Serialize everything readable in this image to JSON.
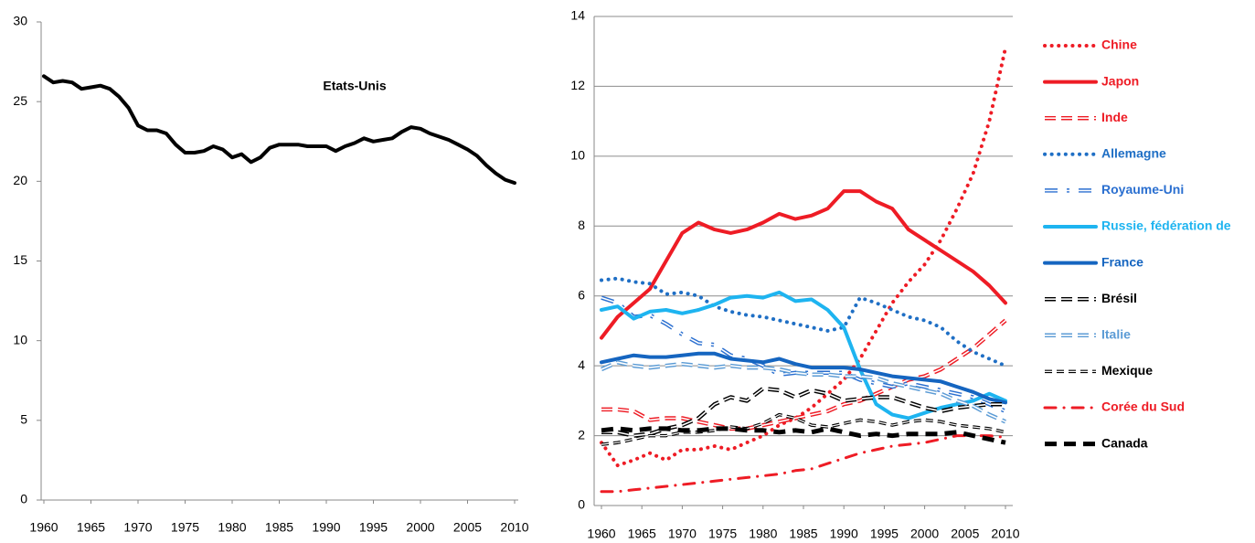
{
  "chart_data": [
    {
      "type": "line",
      "x": [
        1960,
        1961,
        1962,
        1963,
        1964,
        1965,
        1966,
        1967,
        1968,
        1969,
        1970,
        1971,
        1972,
        1973,
        1974,
        1975,
        1976,
        1977,
        1978,
        1979,
        1980,
        1981,
        1982,
        1983,
        1984,
        1985,
        1986,
        1987,
        1988,
        1989,
        1990,
        1991,
        1992,
        1993,
        1994,
        1995,
        1996,
        1997,
        1998,
        1999,
        2000,
        2001,
        2002,
        2003,
        2004,
        2005,
        2006,
        2007,
        2008,
        2009,
        2010
      ],
      "series": [
        {
          "name": "Etats-Unis",
          "color": "#000000",
          "dash": "solid",
          "values": [
            26.6,
            26.2,
            26.3,
            26.2,
            25.8,
            25.9,
            26.0,
            25.8,
            25.3,
            24.6,
            23.5,
            23.2,
            23.2,
            23.0,
            22.3,
            21.8,
            21.8,
            21.9,
            22.2,
            22.0,
            21.5,
            21.7,
            21.2,
            21.5,
            22.1,
            22.3,
            22.3,
            22.3,
            22.2,
            22.2,
            22.2,
            21.9,
            22.2,
            22.4,
            22.7,
            22.5,
            22.6,
            22.7,
            23.1,
            23.4,
            23.3,
            23.0,
            22.8,
            22.6,
            22.3,
            22.0,
            21.6,
            21.0,
            20.5,
            20.1,
            19.9
          ]
        }
      ],
      "xlim": [
        1960,
        2010
      ],
      "xticks": [
        1960,
        1965,
        1970,
        1975,
        1980,
        1985,
        1990,
        1995,
        2000,
        2005,
        2010
      ],
      "ylim": [
        0,
        30
      ],
      "yticks": [
        0,
        5,
        10,
        15,
        20,
        25,
        30
      ],
      "grid": false,
      "legend": "inline"
    },
    {
      "type": "line",
      "x": [
        1960,
        1962,
        1964,
        1966,
        1968,
        1970,
        1972,
        1974,
        1976,
        1978,
        1980,
        1982,
        1984,
        1986,
        1988,
        1990,
        1992,
        1994,
        1996,
        1998,
        2000,
        2002,
        2004,
        2006,
        2008,
        2010
      ],
      "series": [
        {
          "name": "Chine",
          "color": "#ee1c25",
          "dash": "dotted",
          "values": [
            1.8,
            1.15,
            1.3,
            1.5,
            1.3,
            1.6,
            1.6,
            1.7,
            1.6,
            1.8,
            2.0,
            2.3,
            2.5,
            2.8,
            3.2,
            3.6,
            4.2,
            5.0,
            5.8,
            6.4,
            6.9,
            7.6,
            8.5,
            9.5,
            11.0,
            13.1
          ]
        },
        {
          "name": "Japon",
          "color": "#ee1c25",
          "dash": "solid",
          "values": [
            4.8,
            5.4,
            5.8,
            6.2,
            7.0,
            7.8,
            8.1,
            7.9,
            7.8,
            7.9,
            8.1,
            8.35,
            8.2,
            8.3,
            8.5,
            9.0,
            9.0,
            8.7,
            8.5,
            7.9,
            7.6,
            7.3,
            7.0,
            6.7,
            6.3,
            5.8
          ]
        },
        {
          "name": "Inde",
          "color": "#ee1c25",
          "dash": "double-dashed",
          "values": [
            2.75,
            2.75,
            2.7,
            2.45,
            2.5,
            2.5,
            2.4,
            2.3,
            2.2,
            2.2,
            2.3,
            2.4,
            2.5,
            2.6,
            2.7,
            2.9,
            3.0,
            3.2,
            3.4,
            3.6,
            3.7,
            3.9,
            4.2,
            4.5,
            4.9,
            5.3
          ]
        },
        {
          "name": "Allemagne",
          "color": "#1f6fc5",
          "dash": "dotted",
          "values": [
            6.45,
            6.5,
            6.4,
            6.35,
            6.05,
            6.1,
            6.0,
            5.7,
            5.55,
            5.45,
            5.4,
            5.3,
            5.2,
            5.1,
            5.0,
            5.1,
            5.95,
            5.8,
            5.6,
            5.4,
            5.3,
            5.1,
            4.7,
            4.4,
            4.2,
            4.0
          ]
        },
        {
          "name": "Royaume-Uni",
          "color": "#2a6fd0",
          "dash": "double-dashdot",
          "values": [
            5.95,
            5.8,
            5.4,
            5.45,
            5.2,
            4.9,
            4.65,
            4.6,
            4.3,
            4.2,
            4.0,
            3.75,
            3.8,
            3.8,
            3.8,
            3.8,
            3.6,
            3.5,
            3.4,
            3.5,
            3.4,
            3.3,
            3.2,
            3.1,
            2.9,
            2.7
          ]
        },
        {
          "name": "Russie, fédération de",
          "color": "#1eb4f0",
          "dash": "solid",
          "values": [
            5.6,
            5.7,
            5.35,
            5.55,
            5.6,
            5.5,
            5.6,
            5.75,
            5.95,
            6.0,
            5.95,
            6.1,
            5.85,
            5.9,
            5.6,
            5.1,
            3.9,
            2.9,
            2.6,
            2.5,
            2.65,
            2.8,
            2.9,
            3.0,
            3.2,
            3.0
          ]
        },
        {
          "name": "France",
          "color": "#1565c0",
          "dash": "solid",
          "values": [
            4.1,
            4.2,
            4.3,
            4.25,
            4.25,
            4.3,
            4.35,
            4.35,
            4.2,
            4.15,
            4.1,
            4.2,
            4.05,
            3.95,
            3.95,
            3.95,
            3.9,
            3.8,
            3.7,
            3.65,
            3.6,
            3.55,
            3.4,
            3.25,
            3.05,
            2.95
          ]
        },
        {
          "name": "Brésil",
          "color": "#000000",
          "dash": "double-dashed",
          "values": [
            2.1,
            2.1,
            2.0,
            2.05,
            2.2,
            2.3,
            2.5,
            2.9,
            3.1,
            3.0,
            3.35,
            3.3,
            3.1,
            3.3,
            3.2,
            3.0,
            3.05,
            3.1,
            3.1,
            2.95,
            2.8,
            2.7,
            2.8,
            2.85,
            2.9,
            2.9
          ]
        },
        {
          "name": "Italie",
          "color": "#5b9bd5",
          "dash": "double-dashed",
          "values": [
            3.9,
            4.1,
            4.0,
            3.95,
            4.0,
            4.05,
            4.0,
            3.95,
            4.0,
            3.95,
            3.95,
            3.9,
            3.8,
            3.75,
            3.75,
            3.7,
            3.7,
            3.65,
            3.5,
            3.4,
            3.3,
            3.2,
            3.0,
            2.85,
            2.6,
            2.4
          ]
        },
        {
          "name": "Mexique",
          "color": "#000000",
          "dash": "double-short",
          "values": [
            1.75,
            1.8,
            1.9,
            2.0,
            2.0,
            2.1,
            2.1,
            2.15,
            2.25,
            2.2,
            2.35,
            2.6,
            2.5,
            2.3,
            2.25,
            2.35,
            2.45,
            2.4,
            2.3,
            2.4,
            2.45,
            2.4,
            2.3,
            2.25,
            2.2,
            2.1
          ]
        },
        {
          "name": "Corée du Sud",
          "color": "#ee1c25",
          "dash": "dashdot",
          "values": [
            0.4,
            0.4,
            0.45,
            0.5,
            0.55,
            0.6,
            0.65,
            0.7,
            0.75,
            0.8,
            0.85,
            0.9,
            1.0,
            1.05,
            1.2,
            1.35,
            1.5,
            1.6,
            1.7,
            1.75,
            1.8,
            1.9,
            2.0,
            2.0,
            2.0,
            1.95
          ]
        },
        {
          "name": "Canada",
          "color": "#000000",
          "dash": "thick-dashed",
          "values": [
            2.15,
            2.2,
            2.15,
            2.2,
            2.2,
            2.15,
            2.15,
            2.2,
            2.2,
            2.15,
            2.15,
            2.1,
            2.15,
            2.1,
            2.2,
            2.1,
            2.0,
            2.05,
            2.0,
            2.05,
            2.05,
            2.05,
            2.1,
            2.0,
            1.9,
            1.8
          ]
        }
      ],
      "xlim": [
        1960,
        2010
      ],
      "xticks": [
        1960,
        1965,
        1970,
        1975,
        1980,
        1985,
        1990,
        1995,
        2000,
        2005,
        2010
      ],
      "ylim": [
        0,
        14
      ],
      "yticks": [
        0,
        2,
        4,
        6,
        8,
        10,
        12,
        14
      ],
      "grid": true,
      "legend": "right"
    }
  ]
}
